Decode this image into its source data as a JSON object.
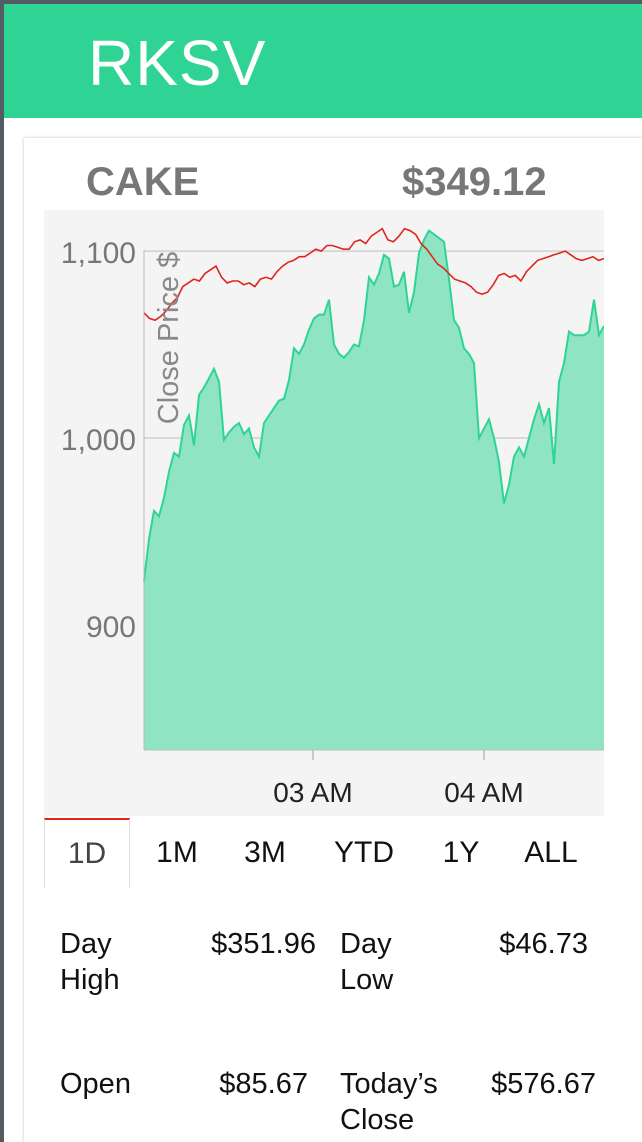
{
  "app": {
    "brand": "RKSV"
  },
  "stock": {
    "ticker": "CAKE",
    "price": "$349.12"
  },
  "chart_data": {
    "type": "area",
    "ylabel": "Close Price $",
    "ylim": [
      833,
      1122
    ],
    "yticks": [
      900,
      1000,
      1100
    ],
    "ytick_labels": [
      "900",
      "1,000",
      "1,100"
    ],
    "xtick_labels": [
      "03 AM",
      "04 AM"
    ],
    "grid": true,
    "colors": {
      "area_fill": "#8fe4c3",
      "area_line": "#2fd495",
      "red_line": "#e0261c",
      "background": "#f4f4f4"
    },
    "series": [
      {
        "kind": "area",
        "y": [
          923,
          946,
          961,
          958,
          968,
          982,
          992,
          990,
          1007,
          1012,
          996,
          1023,
          1027,
          1032,
          1037,
          1030,
          999,
          1003,
          1006,
          1008,
          1002,
          1005,
          995,
          990,
          1008,
          1012,
          1016,
          1020,
          1021,
          1031,
          1048,
          1045,
          1050,
          1058,
          1064,
          1066,
          1066,
          1074,
          1050,
          1045,
          1043,
          1046,
          1050,
          1049,
          1063,
          1086,
          1082,
          1088,
          1098,
          1096,
          1081,
          1082,
          1089,
          1067,
          1078,
          1099,
          1106,
          1111,
          1109,
          1107,
          1105,
          1085,
          1063,
          1059,
          1048,
          1045,
          1040,
          1000,
          1005,
          1010,
          1000,
          987,
          965,
          975,
          990,
          995,
          990,
          1000,
          1010,
          1018,
          1008,
          1016,
          986,
          1030,
          1040,
          1057,
          1055,
          1055,
          1055,
          1057,
          1074,
          1055,
          1060
        ]
      },
      {
        "kind": "line",
        "y": [
          1067,
          1064,
          1063,
          1065,
          1068,
          1072,
          1075,
          1081,
          1083,
          1085,
          1084,
          1088,
          1090,
          1092,
          1086,
          1083,
          1084,
          1084,
          1082,
          1083,
          1081,
          1085,
          1086,
          1085,
          1089,
          1092,
          1094,
          1095,
          1097,
          1097,
          1099,
          1101,
          1100,
          1103,
          1103,
          1102,
          1101,
          1101,
          1105,
          1106,
          1104,
          1108,
          1110,
          1112,
          1106,
          1105,
          1108,
          1112,
          1111,
          1109,
          1104,
          1101,
          1097,
          1093,
          1091,
          1088,
          1085,
          1084,
          1083,
          1081,
          1078,
          1077,
          1078,
          1082,
          1087,
          1088,
          1086,
          1087,
          1084,
          1089,
          1092,
          1095,
          1096,
          1097,
          1098,
          1099,
          1100,
          1098,
          1096,
          1095,
          1096,
          1097,
          1095,
          1096
        ]
      }
    ]
  },
  "ranges": {
    "items": [
      {
        "label": "1D",
        "active": true
      },
      {
        "label": "1M",
        "active": false
      },
      {
        "label": "3M",
        "active": false
      },
      {
        "label": "YTD",
        "active": false
      },
      {
        "label": "1Y",
        "active": false
      },
      {
        "label": "ALL",
        "active": false
      }
    ]
  },
  "stats": {
    "day_high": {
      "label_line1": "Day",
      "label_line2": "High",
      "value": "$351.96"
    },
    "day_low": {
      "label_line1": "Day",
      "label_line2": "Low",
      "value": "$46.73"
    },
    "open": {
      "label": "Open",
      "value": "$85.67"
    },
    "todays_close": {
      "label_line1": "Today’s",
      "label_line2": "Close",
      "value": "$576.67"
    }
  }
}
